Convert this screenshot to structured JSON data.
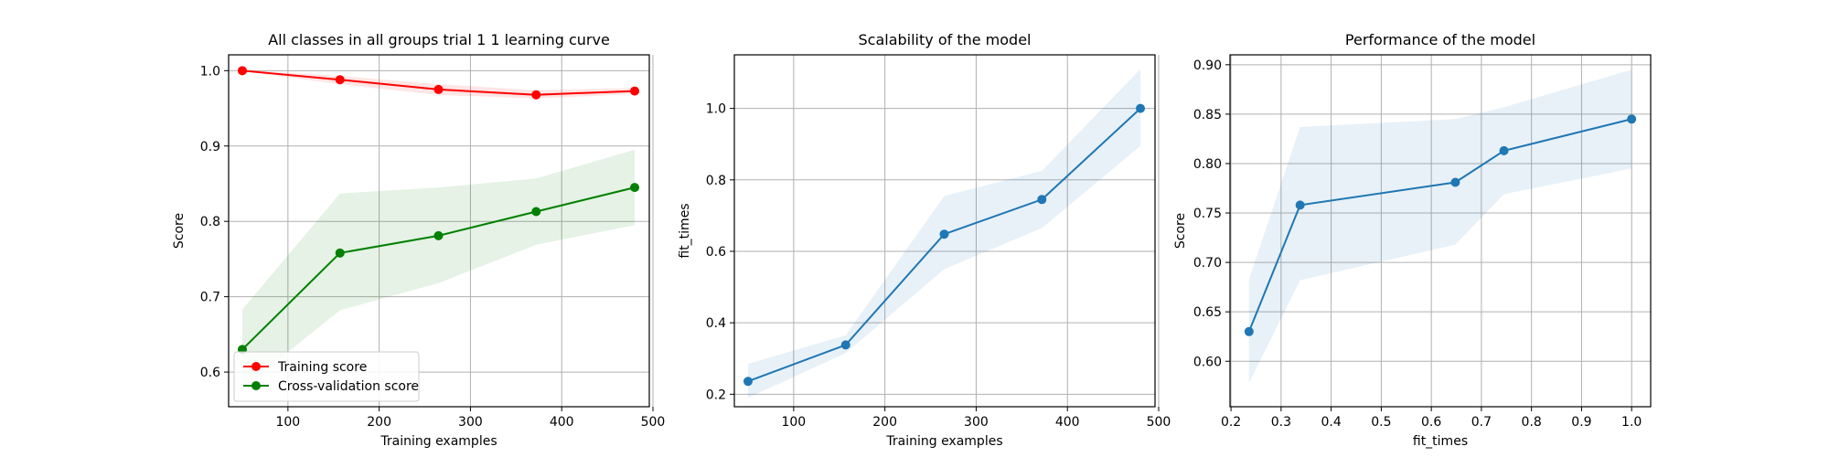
{
  "chart_data": [
    {
      "type": "line",
      "title": "All classes in all groups trial 1 1 learning curve",
      "xlabel": "Training examples",
      "ylabel": "Score",
      "xlim": [
        35,
        496
      ],
      "ylim": [
        0.554,
        1.021
      ],
      "xticks": [
        100,
        200,
        300,
        400,
        500
      ],
      "yticks": [
        0.6,
        0.7,
        0.8,
        0.9,
        1.0
      ],
      "ytick_labels": [
        "0.6",
        "0.7",
        "0.8",
        "0.9",
        "1.0"
      ],
      "x": [
        50,
        157,
        265,
        372,
        480
      ],
      "series": [
        {
          "name": "Training score",
          "color": "#ff0000",
          "values": [
            1.0,
            0.988,
            0.975,
            0.968,
            0.973
          ],
          "band_low": [
            0.999,
            0.982,
            0.968,
            0.963,
            0.969
          ],
          "band_high": [
            1.001,
            0.993,
            0.982,
            0.974,
            0.977
          ]
        },
        {
          "name": "Cross-validation score",
          "color": "#008000",
          "values": [
            0.63,
            0.758,
            0.781,
            0.813,
            0.845
          ],
          "band_low": [
            0.578,
            0.682,
            0.718,
            0.769,
            0.795
          ],
          "band_high": [
            0.683,
            0.837,
            0.845,
            0.857,
            0.895
          ]
        }
      ],
      "grid": true,
      "legend": "lower-left"
    },
    {
      "type": "line",
      "title": "Scalability of the model",
      "xlabel": "Training examples",
      "ylabel": "fit_times",
      "xlim": [
        35,
        496
      ],
      "ylim": [
        0.165,
        1.15
      ],
      "xticks": [
        100,
        200,
        300,
        400,
        500
      ],
      "yticks": [
        0.2,
        0.4,
        0.6,
        0.8,
        1.0
      ],
      "ytick_labels": [
        "0.2",
        "0.4",
        "0.6",
        "0.8",
        "1.0"
      ],
      "x": [
        50,
        157,
        265,
        372,
        480
      ],
      "series": [
        {
          "color": "#1f77b4",
          "values": [
            0.236,
            0.338,
            0.648,
            0.745,
            1.0
          ],
          "band_low": [
            0.19,
            0.315,
            0.55,
            0.665,
            0.895
          ],
          "band_high": [
            0.285,
            0.365,
            0.755,
            0.825,
            1.11
          ]
        }
      ],
      "grid": true
    },
    {
      "type": "line",
      "title": "Performance of the model",
      "xlabel": "fit_times",
      "ylabel": "Score",
      "xlim": [
        0.198,
        1.038
      ],
      "ylim": [
        0.554,
        0.91
      ],
      "xticks": [
        0.2,
        0.3,
        0.4,
        0.5,
        0.6,
        0.7,
        0.8,
        0.9,
        1.0
      ],
      "xtick_labels": [
        "0.2",
        "0.3",
        "0.4",
        "0.5",
        "0.6",
        "0.7",
        "0.8",
        "0.9",
        "1.0"
      ],
      "yticks": [
        0.6,
        0.65,
        0.7,
        0.75,
        0.8,
        0.85,
        0.9
      ],
      "ytick_labels": [
        "0.60",
        "0.65",
        "0.70",
        "0.75",
        "0.80",
        "0.85",
        "0.90"
      ],
      "x": [
        0.236,
        0.338,
        0.648,
        0.745,
        1.0
      ],
      "series": [
        {
          "color": "#1f77b4",
          "values": [
            0.63,
            0.758,
            0.781,
            0.813,
            0.845
          ],
          "band_low": [
            0.578,
            0.682,
            0.718,
            0.769,
            0.795
          ],
          "band_high": [
            0.683,
            0.837,
            0.845,
            0.857,
            0.895
          ]
        }
      ],
      "grid": true
    }
  ]
}
